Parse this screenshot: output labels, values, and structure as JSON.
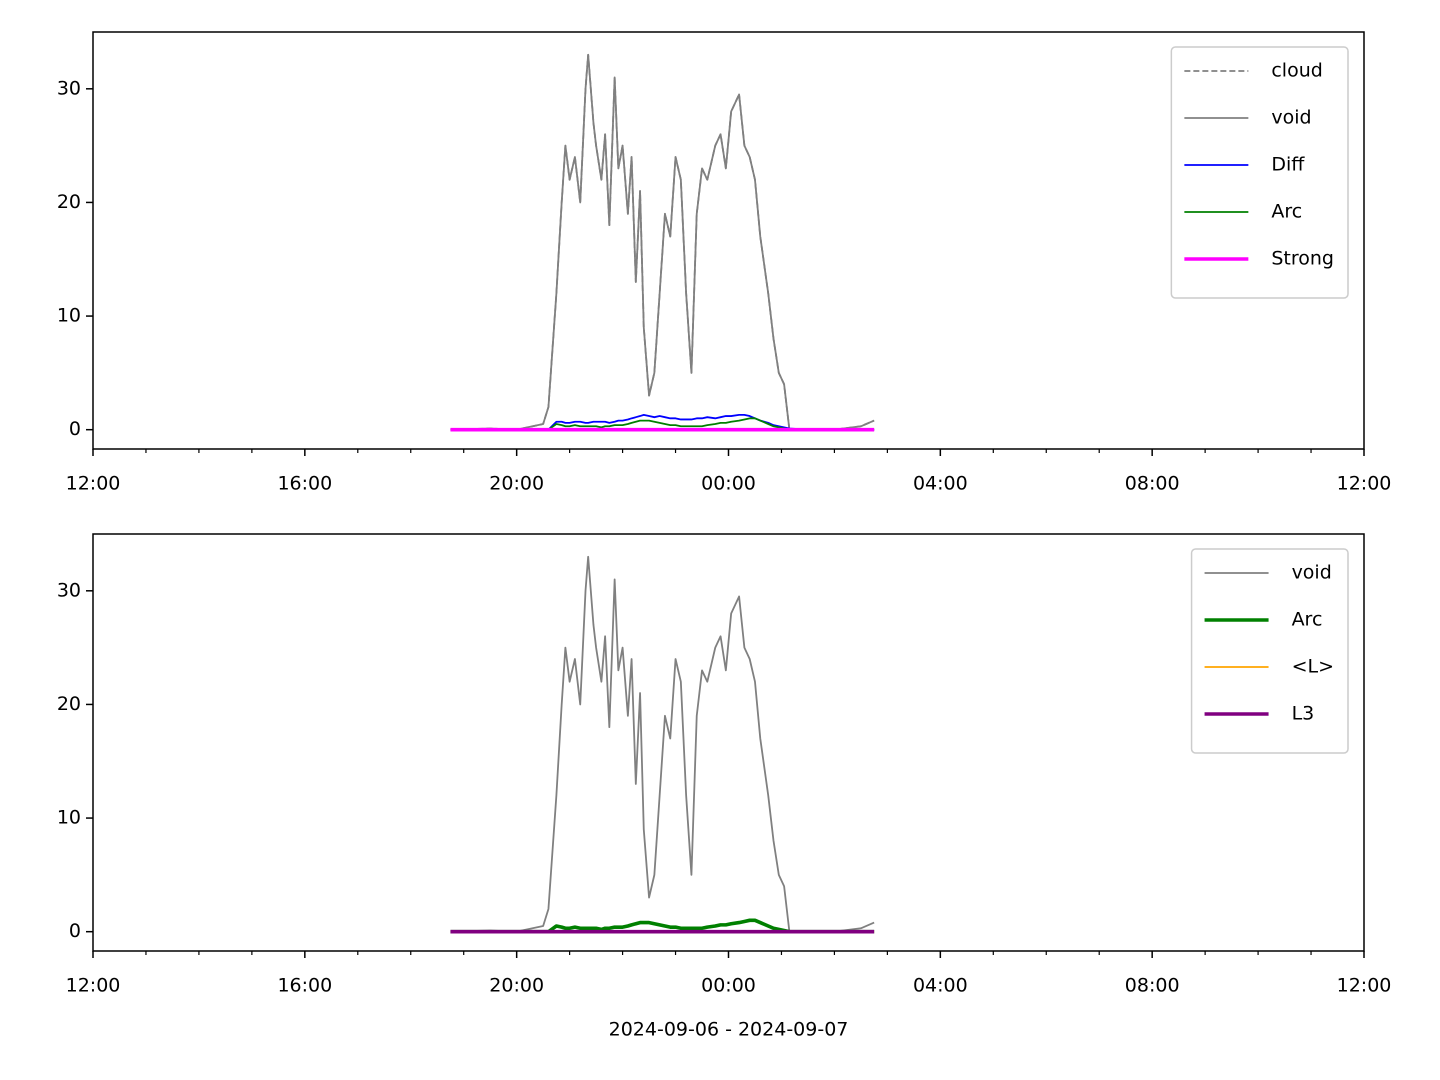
{
  "chart_data": [
    {
      "type": "line",
      "x": [
        6.75,
        7.5,
        8.0,
        8.5,
        8.6,
        8.75,
        8.85,
        8.92,
        9.0,
        9.1,
        9.2,
        9.3,
        9.35,
        9.45,
        9.5,
        9.6,
        9.67,
        9.75,
        9.85,
        9.92,
        10.0,
        10.1,
        10.17,
        10.25,
        10.33,
        10.4,
        10.5,
        10.6,
        10.7,
        10.8,
        10.9,
        11.0,
        11.1,
        11.2,
        11.3,
        11.4,
        11.5,
        11.6,
        11.75,
        11.85,
        11.95,
        12.05,
        12.2,
        12.3,
        12.4,
        12.5,
        12.6,
        12.75,
        12.85,
        12.95,
        13.05,
        13.15,
        13.5,
        14.0,
        14.5,
        14.75
      ],
      "xlim": [
        0,
        24
      ],
      "xticks": [
        {
          "value": 0,
          "label": "12:00"
        },
        {
          "value": 4,
          "label": "16:00"
        },
        {
          "value": 8,
          "label": "20:00"
        },
        {
          "value": 12,
          "label": "00:00"
        },
        {
          "value": 16,
          "label": "04:00"
        },
        {
          "value": 20,
          "label": "08:00"
        },
        {
          "value": 24,
          "label": "12:00"
        }
      ],
      "xminorticks": [
        1,
        2,
        3,
        5,
        6,
        7,
        9,
        10,
        11,
        13,
        14,
        15,
        17,
        18,
        19,
        21,
        22,
        23
      ],
      "ylim": [
        -1.7,
        35
      ],
      "yticks": [
        0,
        10,
        20,
        30
      ],
      "legend": "upper right",
      "series": [
        {
          "name": "cloud",
          "color": "#808080",
          "linestyle": "dashed",
          "values": [
            0,
            0.1,
            0,
            0.5,
            2,
            12,
            20,
            25,
            22,
            24,
            20,
            30,
            33,
            27,
            25,
            22,
            26,
            18,
            31,
            23,
            25,
            19,
            24,
            13,
            21,
            9,
            3,
            5,
            12,
            19,
            17,
            24,
            22,
            12,
            5,
            19,
            23,
            22,
            25,
            26,
            23,
            28,
            29.5,
            25,
            24,
            22,
            17,
            12,
            8,
            5,
            4,
            0,
            0,
            0,
            0.3,
            0.8
          ]
        },
        {
          "name": "void",
          "color": "#808080",
          "values": [
            0,
            0.1,
            0,
            0.5,
            2,
            12,
            20,
            25,
            22,
            24,
            20,
            30,
            33,
            27,
            25,
            22,
            26,
            18,
            31,
            23,
            25,
            19,
            24,
            13,
            21,
            9,
            3,
            5,
            12,
            19,
            17,
            24,
            22,
            12,
            5,
            19,
            23,
            22,
            25,
            26,
            23,
            28,
            29.5,
            25,
            24,
            22,
            17,
            12,
            8,
            5,
            4,
            0,
            0,
            0,
            0.3,
            0.8
          ]
        },
        {
          "name": "Diff",
          "color": "#0000ff",
          "values": [
            0,
            0,
            0,
            0,
            0,
            0.7,
            0.7,
            0.6,
            0.6,
            0.7,
            0.7,
            0.6,
            0.6,
            0.7,
            0.7,
            0.7,
            0.7,
            0.6,
            0.7,
            0.8,
            0.8,
            0.9,
            1.0,
            1.1,
            1.2,
            1.3,
            1.2,
            1.1,
            1.2,
            1.1,
            1.0,
            1.0,
            0.9,
            0.9,
            0.9,
            1.0,
            1.0,
            1.1,
            1.0,
            1.1,
            1.2,
            1.2,
            1.3,
            1.3,
            1.2,
            1.0,
            0.8,
            0.6,
            0.4,
            0.3,
            0.2,
            0.1,
            0,
            0,
            0,
            0
          ]
        },
        {
          "name": "Arc",
          "color": "#008000",
          "values": [
            0,
            0,
            0,
            0,
            0,
            0.5,
            0.4,
            0.3,
            0.3,
            0.4,
            0.3,
            0.3,
            0.3,
            0.3,
            0.3,
            0.2,
            0.3,
            0.3,
            0.4,
            0.4,
            0.4,
            0.5,
            0.6,
            0.7,
            0.8,
            0.8,
            0.8,
            0.7,
            0.6,
            0.5,
            0.4,
            0.4,
            0.3,
            0.3,
            0.3,
            0.3,
            0.3,
            0.4,
            0.5,
            0.6,
            0.6,
            0.7,
            0.8,
            0.9,
            1.0,
            1.0,
            0.8,
            0.5,
            0.3,
            0.2,
            0.1,
            0,
            0,
            0,
            0,
            0
          ]
        },
        {
          "name": "Strong",
          "color": "#ff00ff",
          "linewidth": 2,
          "values": [
            0,
            0,
            0,
            0,
            0,
            0,
            0,
            0,
            0,
            0,
            0,
            0,
            0,
            0,
            0,
            0,
            0,
            0,
            0,
            0,
            0,
            0,
            0,
            0,
            0,
            0,
            0,
            0,
            0,
            0,
            0,
            0,
            0,
            0,
            0,
            0,
            0,
            0,
            0,
            0,
            0,
            0,
            0,
            0,
            0,
            0,
            0,
            0,
            0,
            0,
            0,
            0,
            0,
            0,
            0,
            0
          ]
        }
      ]
    },
    {
      "type": "line",
      "x": [
        6.75,
        7.5,
        8.0,
        8.5,
        8.6,
        8.75,
        8.85,
        8.92,
        9.0,
        9.1,
        9.2,
        9.3,
        9.35,
        9.45,
        9.5,
        9.6,
        9.67,
        9.75,
        9.85,
        9.92,
        10.0,
        10.1,
        10.17,
        10.25,
        10.33,
        10.4,
        10.5,
        10.6,
        10.7,
        10.8,
        10.9,
        11.0,
        11.1,
        11.2,
        11.3,
        11.4,
        11.5,
        11.6,
        11.75,
        11.85,
        11.95,
        12.05,
        12.2,
        12.3,
        12.4,
        12.5,
        12.6,
        12.75,
        12.85,
        12.95,
        13.05,
        13.15,
        13.5,
        14.0,
        14.5,
        14.75
      ],
      "xlim": [
        0,
        24
      ],
      "xticks": [
        {
          "value": 0,
          "label": "12:00"
        },
        {
          "value": 4,
          "label": "16:00"
        },
        {
          "value": 8,
          "label": "20:00"
        },
        {
          "value": 12,
          "label": "00:00"
        },
        {
          "value": 16,
          "label": "04:00"
        },
        {
          "value": 20,
          "label": "08:00"
        },
        {
          "value": 24,
          "label": "12:00"
        }
      ],
      "xminorticks": [
        1,
        2,
        3,
        5,
        6,
        7,
        9,
        10,
        11,
        13,
        14,
        15,
        17,
        18,
        19,
        21,
        22,
        23
      ],
      "ylim": [
        -1.7,
        35
      ],
      "yticks": [
        0,
        10,
        20,
        30
      ],
      "xlabel": "2024-09-06 - 2024-09-07",
      "legend": "upper right",
      "series": [
        {
          "name": "void",
          "color": "#808080",
          "values": [
            0,
            0.1,
            0,
            0.5,
            2,
            12,
            20,
            25,
            22,
            24,
            20,
            30,
            33,
            27,
            25,
            22,
            26,
            18,
            31,
            23,
            25,
            19,
            24,
            13,
            21,
            9,
            3,
            5,
            12,
            19,
            17,
            24,
            22,
            12,
            5,
            19,
            23,
            22,
            25,
            26,
            23,
            28,
            29.5,
            25,
            24,
            22,
            17,
            12,
            8,
            5,
            4,
            0,
            0,
            0,
            0.3,
            0.8
          ]
        },
        {
          "name": "Arc",
          "color": "#008000",
          "linewidth": 2,
          "values": [
            0,
            0,
            0,
            0,
            0,
            0.5,
            0.4,
            0.3,
            0.3,
            0.4,
            0.3,
            0.3,
            0.3,
            0.3,
            0.3,
            0.2,
            0.3,
            0.3,
            0.4,
            0.4,
            0.4,
            0.5,
            0.6,
            0.7,
            0.8,
            0.8,
            0.8,
            0.7,
            0.6,
            0.5,
            0.4,
            0.4,
            0.3,
            0.3,
            0.3,
            0.3,
            0.3,
            0.4,
            0.5,
            0.6,
            0.6,
            0.7,
            0.8,
            0.9,
            1.0,
            1.0,
            0.8,
            0.5,
            0.3,
            0.2,
            0.1,
            0,
            0,
            0,
            0,
            0
          ]
        },
        {
          "name": "<L>",
          "color": "#ffa500",
          "values": [
            0,
            0,
            0,
            0,
            0,
            0,
            0,
            0,
            0,
            0,
            0,
            0,
            0,
            0,
            0,
            0,
            0,
            0,
            0,
            0,
            0,
            0,
            0,
            0,
            0,
            0,
            0,
            0,
            0,
            0,
            0,
            0,
            0,
            0,
            0,
            0,
            0,
            0,
            0,
            0,
            0,
            0,
            0,
            0,
            0,
            0,
            0,
            0,
            0,
            0,
            0,
            0,
            0,
            0,
            0,
            0
          ]
        },
        {
          "name": "L3",
          "color": "#800080",
          "linewidth": 2,
          "values": [
            0,
            0,
            0,
            0,
            0,
            0,
            0,
            0,
            0,
            0,
            0,
            0,
            0,
            0,
            0,
            0,
            0,
            0,
            0,
            0,
            0,
            0,
            0,
            0,
            0,
            0,
            0,
            0,
            0,
            0,
            0,
            0,
            0,
            0,
            0,
            0,
            0,
            0,
            0,
            0,
            0,
            0,
            0,
            0,
            0,
            0,
            0,
            0,
            0,
            0,
            0,
            0,
            0,
            0,
            0,
            0
          ]
        }
      ]
    }
  ]
}
